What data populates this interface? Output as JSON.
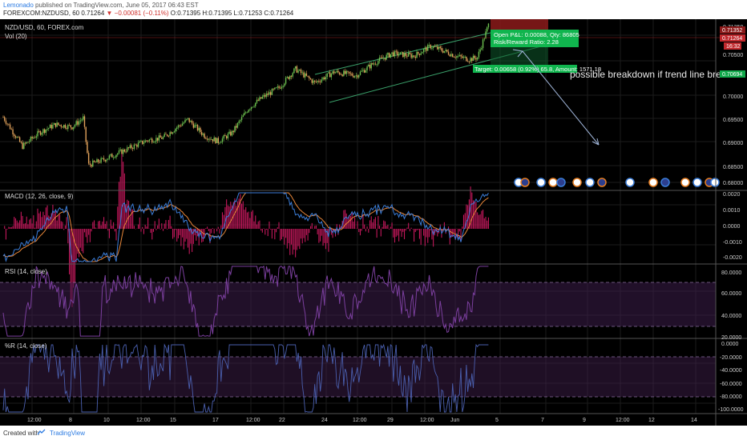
{
  "header": {
    "author": "Lemonado",
    "published_text": "published on TradingView.com, June 05, 2017 06:43 EST",
    "symbol_line": "FOREXCOM:NZDUSD, 60",
    "last_price": "0.71264",
    "change": "−0.00081 (−0.11%)",
    "ohlc": "O:0.71395 H:0.71395 L:0.71253 C:0.71264"
  },
  "footer": {
    "created_with": "Created with",
    "brand": "TradingView"
  },
  "colors": {
    "background": "#000000",
    "bull": "#6bbf4e",
    "bear": "#e0a15a",
    "channel": "#3aa06a",
    "macd_line": "#3b7dd8",
    "macd_signal": "#e8873a",
    "macd_hist": "#c2185b",
    "rsi": "#7b3f9e",
    "willr": "#4a5fae",
    "band": "#3d1d4a",
    "target_box": "#10b54e",
    "stop_box": "#8b1a1a",
    "arrow": "#9fb4d8",
    "price_label_red": "#c0282d",
    "price_label_green": "#10a84a"
  },
  "chart_data": [
    {
      "type": "candlestick",
      "title": "NZD/USD, 60, FOREX.com",
      "subtitle": "Vol (20)",
      "ylim": [
        0.68,
        0.715
      ],
      "yticks": [
        "0.71350",
        "0.70500",
        "0.70000",
        "0.69500",
        "0.69000",
        "0.68500",
        "0.68000"
      ],
      "last_price_label": "0.71264",
      "stop_label": "0.71352",
      "target_label": "0.70694",
      "timer_label": "16:32",
      "x_labels": [
        "12:00",
        "8",
        "10",
        "12:00",
        "15",
        "17",
        "12:00",
        "22",
        "24",
        "12:00",
        "29",
        "12:00",
        "Jun",
        "5",
        "7",
        "9",
        "12:00",
        "12",
        "14"
      ],
      "anchors": [
        [
          0,
          0.695
        ],
        [
          14,
          0.689
        ],
        [
          26,
          0.6918
        ],
        [
          38,
          0.6935
        ],
        [
          50,
          0.693
        ],
        [
          58,
          0.6948
        ],
        [
          62,
          0.6852
        ],
        [
          72,
          0.6862
        ],
        [
          88,
          0.6882
        ],
        [
          104,
          0.6902
        ],
        [
          116,
          0.6908
        ],
        [
          124,
          0.6925
        ],
        [
          134,
          0.6945
        ],
        [
          146,
          0.6912
        ],
        [
          156,
          0.69
        ],
        [
          166,
          0.6918
        ],
        [
          178,
          0.6968
        ],
        [
          188,
          0.699
        ],
        [
          200,
          0.701
        ],
        [
          212,
          0.7048
        ],
        [
          226,
          0.702
        ],
        [
          240,
          0.7042
        ],
        [
          256,
          0.7035
        ],
        [
          270,
          0.7062
        ],
        [
          282,
          0.708
        ],
        [
          298,
          0.7075
        ],
        [
          310,
          0.7095
        ],
        [
          320,
          0.7085
        ],
        [
          328,
          0.7075
        ],
        [
          338,
          0.7068
        ],
        [
          344,
          0.7072
        ],
        [
          352,
          0.7138
        ]
      ],
      "position": {
        "label_top": "Open P&L: 0.00088, Qty: 86805",
        "label_mid": "Risk/Reward Ratio: 2.28",
        "label_target": "Target: 0.00658 (0.92%) 65.8, Amount: 1571.18"
      },
      "annotation": "possible breakdown if trend line breaks",
      "events_count": 19
    },
    {
      "type": "line",
      "title": "MACD (12, 26, close, 9)",
      "ylim": [
        -0.0025,
        0.0025
      ],
      "yticks": [
        "0.0020",
        "0.0010",
        "0.0000",
        "-0.0010",
        "-0.0020"
      ],
      "series": [
        {
          "name": "MACD"
        },
        {
          "name": "Signal"
        },
        {
          "name": "Histogram"
        }
      ]
    },
    {
      "type": "line",
      "title": "RSI (14, close)",
      "ylim": [
        20,
        84
      ],
      "yticks": [
        "80.0000",
        "60.0000",
        "40.0000",
        "20.0000"
      ],
      "bands": [
        70,
        30
      ]
    },
    {
      "type": "line",
      "title": "%R (14, close)",
      "ylim": [
        -100,
        0
      ],
      "yticks": [
        "0.0000",
        "-20.0000",
        "-40.0000",
        "-60.0000",
        "-80.0000",
        "-100.0000"
      ],
      "bands": [
        -20,
        -80
      ]
    }
  ]
}
